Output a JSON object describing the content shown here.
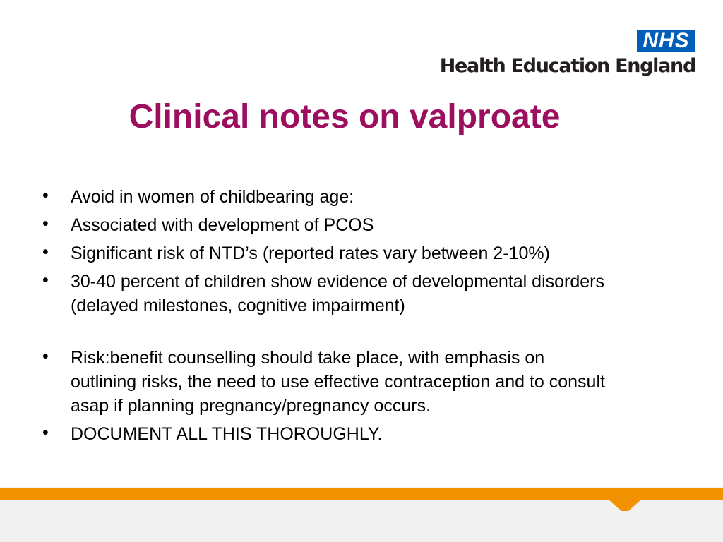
{
  "header": {
    "logo_mark": "NHS",
    "organisation": "Health Education England"
  },
  "title": "Clinical notes on valproate",
  "bullets": [
    "Avoid in women of childbearing age:",
    "Associated with development of PCOS",
    "Significant risk of NTD’s (reported rates vary between 2-10%)",
    "30-40 percent of children show evidence of developmental disorders (delayed milestones, cognitive impairment)",
    "Risk:benefit counselling should take place, with emphasis on outlining risks, the need to use effective contraception and to consult asap if planning pregnancy/pregnancy occurs.",
    "DOCUMENT ALL THIS THOROUGHLY."
  ]
}
